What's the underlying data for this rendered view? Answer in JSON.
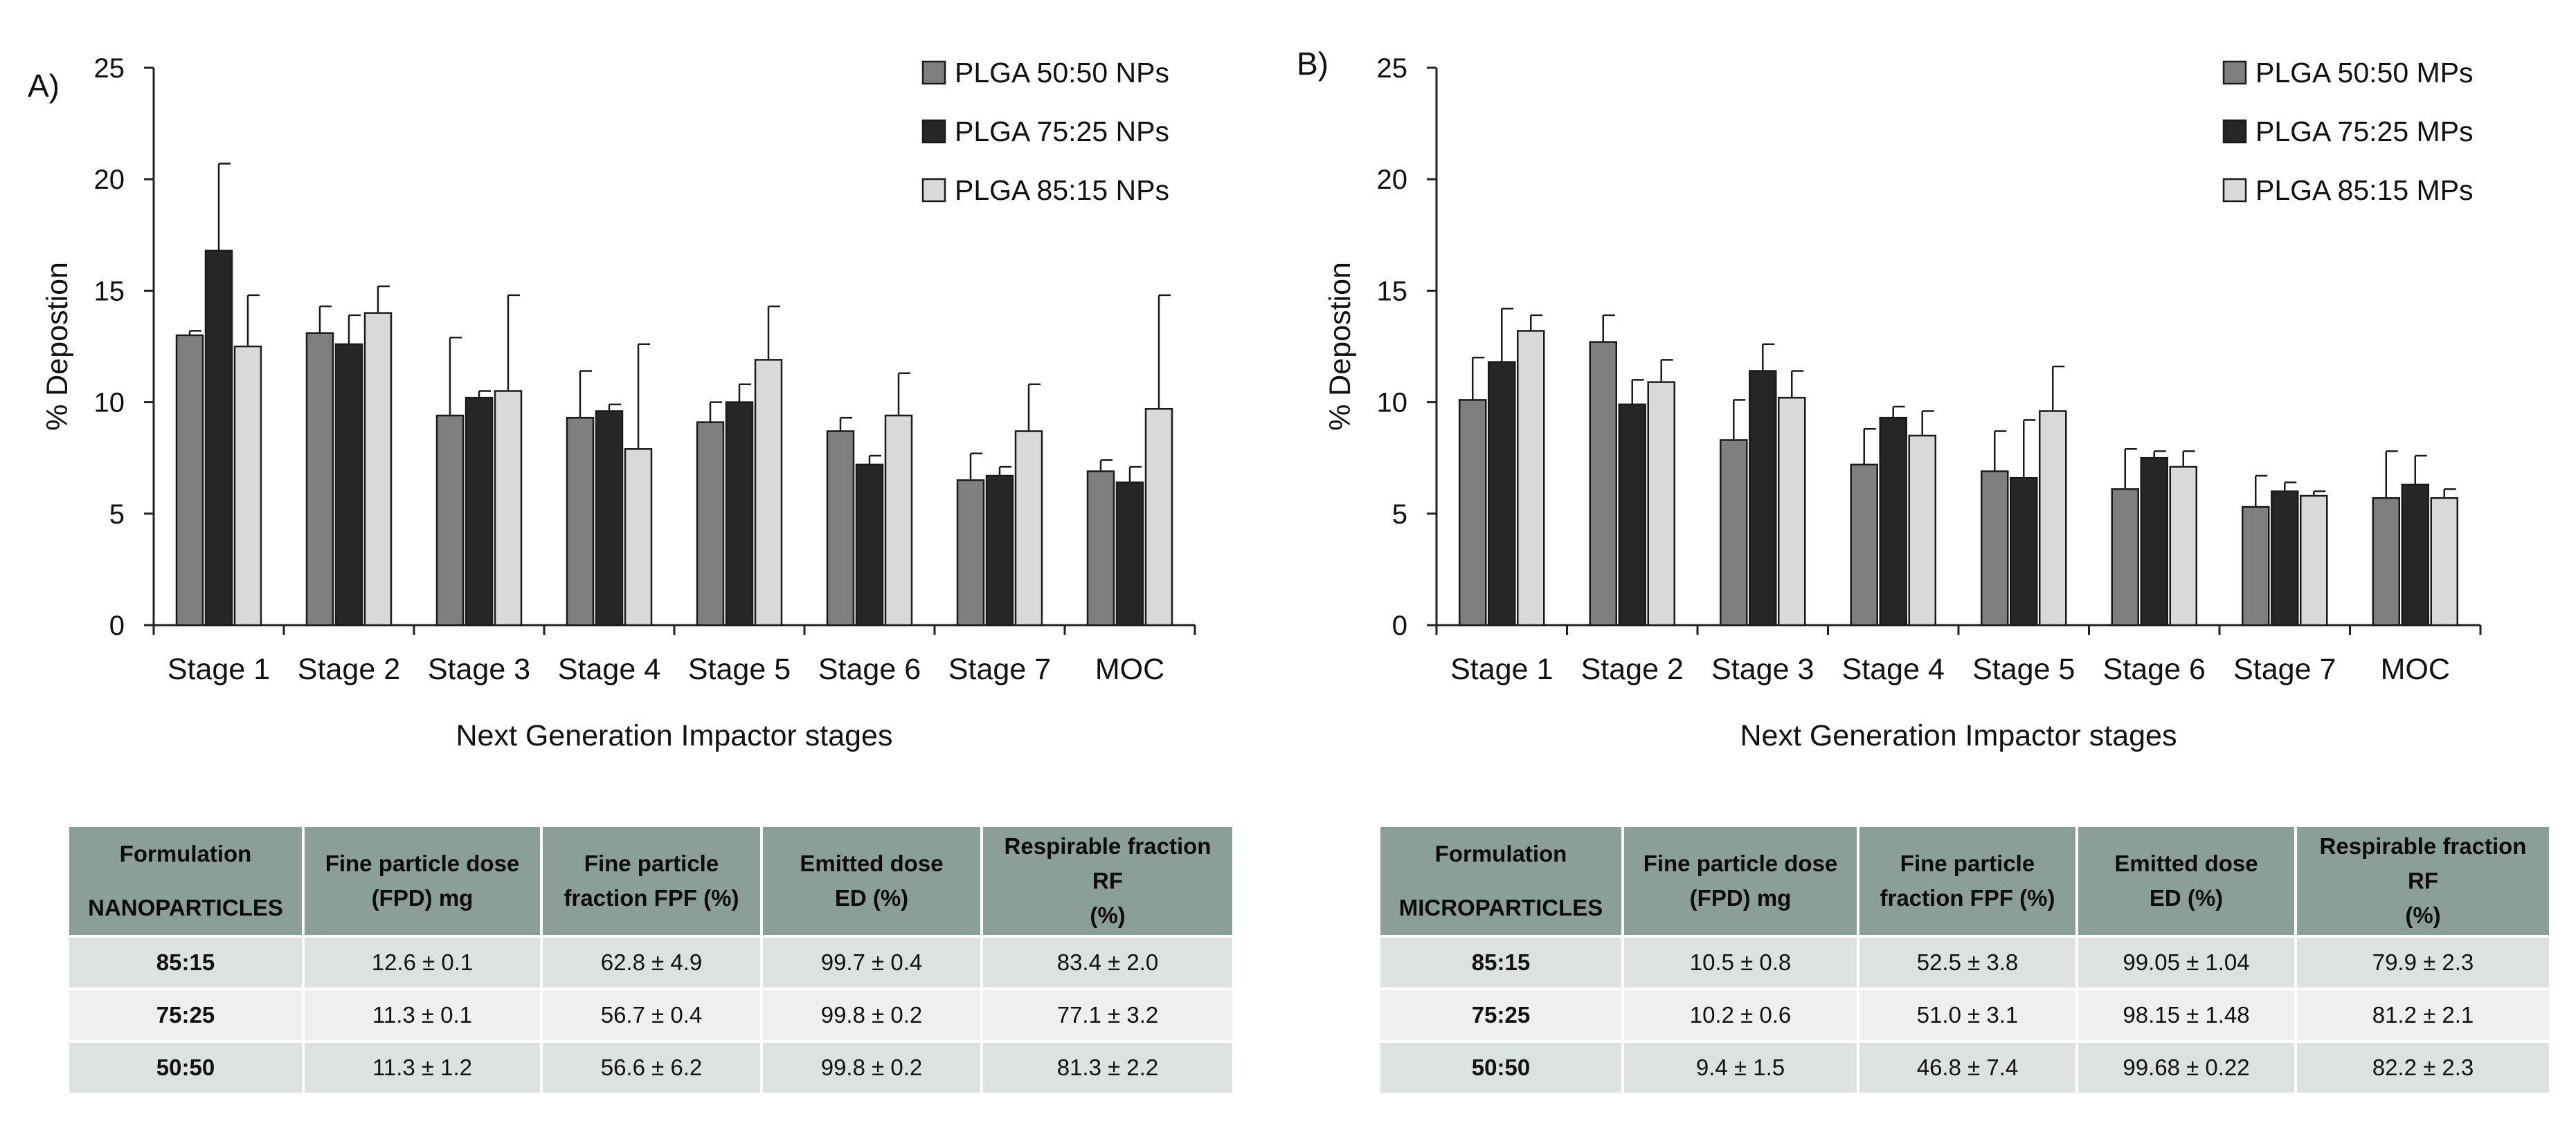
{
  "colors": {
    "series": [
      "#7f7f7f",
      "#262626",
      "#d9d9d9"
    ],
    "table_header": "#8a9f95"
  },
  "chart_data": [
    {
      "type": "bar",
      "panel_label": "A)",
      "title": "",
      "xlabel": "Next Generation Impactor stages",
      "ylabel": "% Depostion",
      "ylim": [
        0,
        25
      ],
      "yticks": [
        0,
        5,
        10,
        15,
        20,
        25
      ],
      "grid": false,
      "legend_position": "top-right",
      "categories": [
        "Stage 1",
        "Stage 2",
        "Stage 3",
        "Stage 4",
        "Stage 5",
        "Stage 6",
        "Stage 7",
        "MOC"
      ],
      "series": [
        {
          "name": "PLGA 50:50 NPs",
          "values": [
            13.0,
            13.1,
            9.4,
            9.3,
            9.1,
            8.7,
            6.5,
            6.9
          ],
          "errors": [
            0.2,
            1.2,
            3.5,
            2.1,
            0.9,
            0.6,
            1.2,
            0.5
          ]
        },
        {
          "name": "PLGA 75:25 NPs",
          "values": [
            16.8,
            12.6,
            10.2,
            9.6,
            10.0,
            7.2,
            6.7,
            6.4
          ],
          "errors": [
            3.9,
            1.3,
            0.3,
            0.3,
            0.8,
            0.4,
            0.4,
            0.7
          ]
        },
        {
          "name": "PLGA 85:15 NPs",
          "values": [
            12.5,
            14.0,
            10.5,
            7.9,
            11.9,
            9.4,
            8.7,
            9.7
          ],
          "errors": [
            2.3,
            1.2,
            4.3,
            4.7,
            2.4,
            1.9,
            2.1,
            5.1
          ]
        }
      ]
    },
    {
      "type": "bar",
      "panel_label": "B)",
      "title": "",
      "xlabel": "Next Generation Impactor stages",
      "ylabel": "% Depostion",
      "ylim": [
        0,
        25
      ],
      "yticks": [
        0,
        5,
        10,
        15,
        20,
        25
      ],
      "grid": false,
      "legend_position": "top-right",
      "categories": [
        "Stage 1",
        "Stage 2",
        "Stage 3",
        "Stage 4",
        "Stage 5",
        "Stage 6",
        "Stage 7",
        "MOC"
      ],
      "series": [
        {
          "name": "PLGA 50:50 MPs",
          "values": [
            10.1,
            12.7,
            8.3,
            7.2,
            6.9,
            6.1,
            5.3,
            5.7
          ],
          "errors": [
            1.9,
            1.2,
            1.8,
            1.6,
            1.8,
            1.8,
            1.4,
            2.1
          ]
        },
        {
          "name": "PLGA 75:25 MPs",
          "values": [
            11.8,
            9.9,
            11.4,
            9.3,
            6.6,
            7.5,
            6.0,
            6.3
          ],
          "errors": [
            2.4,
            1.1,
            1.2,
            0.5,
            2.6,
            0.3,
            0.4,
            1.3
          ]
        },
        {
          "name": "PLGA 85:15 MPs",
          "values": [
            13.2,
            10.9,
            10.2,
            8.5,
            9.6,
            7.1,
            5.8,
            5.7
          ],
          "errors": [
            0.7,
            1.0,
            1.2,
            1.1,
            2.0,
            0.7,
            0.2,
            0.4
          ]
        }
      ]
    }
  ],
  "tables": [
    {
      "formulation_label": "Formulation",
      "type_label": "NANOPARTICLES",
      "headers": [
        [
          "Fine particle dose",
          "(FPD) mg"
        ],
        [
          "Fine particle",
          "fraction FPF (%)"
        ],
        [
          "Emitted dose",
          "ED (%)"
        ],
        [
          "Respirable fraction RF",
          "(%)"
        ]
      ],
      "rows": [
        [
          "85:15",
          "12.6 ± 0.1",
          "62.8 ± 4.9",
          "99.7 ± 0.4",
          "83.4 ± 2.0"
        ],
        [
          "75:25",
          "11.3 ± 0.1",
          "56.7 ± 0.4",
          "99.8 ± 0.2",
          "77.1 ± 3.2"
        ],
        [
          "50:50",
          "11.3 ± 1.2",
          "56.6 ± 6.2",
          "99.8 ± 0.2",
          "81.3 ± 2.2"
        ]
      ]
    },
    {
      "formulation_label": "Formulation",
      "type_label": "MICROPARTICLES",
      "headers": [
        [
          "Fine particle dose",
          "(FPD) mg"
        ],
        [
          "Fine particle",
          "fraction FPF (%)"
        ],
        [
          "Emitted dose",
          "ED (%)"
        ],
        [
          "Respirable fraction RF",
          "(%)"
        ]
      ],
      "rows": [
        [
          "85:15",
          "10.5 ± 0.8",
          "52.5 ± 3.8",
          "99.05 ± 1.04",
          "79.9 ± 2.3"
        ],
        [
          "75:25",
          "10.2 ± 0.6",
          "51.0 ± 3.1",
          "98.15 ± 1.48",
          "81.2 ± 2.1"
        ],
        [
          "50:50",
          "9.4 ± 1.5",
          "46.8 ± 7.4",
          "99.68 ± 0.22",
          "82.2 ± 2.3"
        ]
      ]
    }
  ]
}
